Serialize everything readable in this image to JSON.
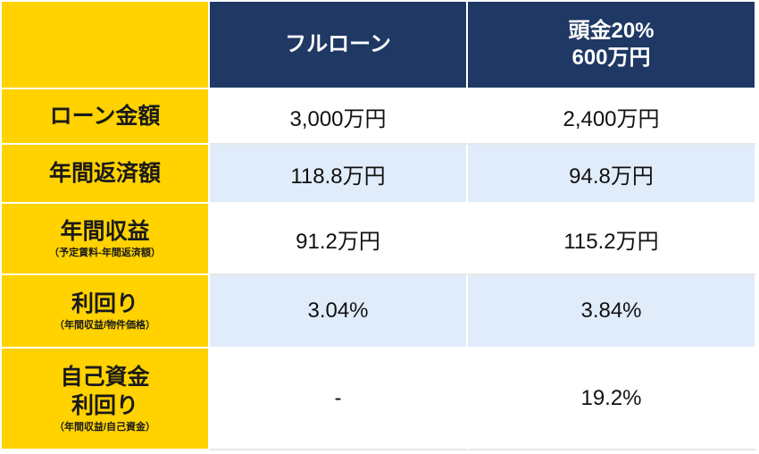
{
  "header": {
    "col1": "フルローン",
    "col2_line1": "頭金20%",
    "col2_line2": "600万円"
  },
  "rows": [
    {
      "label": "ローン金額",
      "sub": "",
      "full": "3,000万円",
      "down": "2,400万円"
    },
    {
      "label": "年間返済額",
      "sub": "",
      "full": "118.8万円",
      "down": "94.8万円"
    },
    {
      "label": "年間収益",
      "sub": "（予定賃料-年間返済額）",
      "full": "91.2万円",
      "down": "115.2万円"
    },
    {
      "label": "利回り",
      "sub": "（年間収益/物件価格）",
      "full": "3.04%",
      "down": "3.84%"
    },
    {
      "label_line1": "自己資金",
      "label_line2": "利回り",
      "sub": "（年間収益/自己資金）",
      "full": "-",
      "down": "19.2%"
    }
  ]
}
